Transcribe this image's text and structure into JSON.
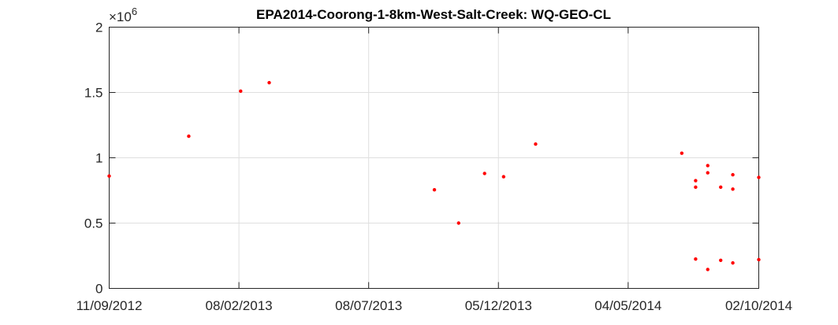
{
  "chart_data": {
    "type": "scatter",
    "title": "EPA2014-Coorong-1-8km-West-Salt-Creek: WQ-GEO-CL",
    "xlabel": "",
    "ylabel": "",
    "xlim": [
      "2012-09-11",
      "2014-10-02"
    ],
    "ylim": [
      0,
      2000000
    ],
    "x_ticks": [
      "2012-09-11",
      "2013-02-08",
      "2013-07-08",
      "2013-12-05",
      "2014-05-04",
      "2014-10-02"
    ],
    "x_tick_labels": [
      "11/09/2012",
      "08/02/2013",
      "08/07/2013",
      "05/12/2013",
      "04/05/2014",
      "02/10/2014"
    ],
    "y_ticks": [
      0,
      500000,
      1000000,
      1500000,
      2000000
    ],
    "y_tick_labels": [
      "0",
      "0.5",
      "1",
      "1.5",
      "2"
    ],
    "y_exponent_label": "×10",
    "y_exponent_power": "6",
    "grid": true,
    "marker_color": "#ff0000",
    "series": [
      {
        "points": [
          {
            "x": "2012-09-11",
            "y": 860000
          },
          {
            "x": "2012-12-12",
            "y": 1165000
          },
          {
            "x": "2013-02-10",
            "y": 1510000
          },
          {
            "x": "2013-03-15",
            "y": 1575000
          },
          {
            "x": "2013-09-22",
            "y": 755000
          },
          {
            "x": "2013-10-20",
            "y": 500000
          },
          {
            "x": "2013-11-19",
            "y": 880000
          },
          {
            "x": "2013-12-11",
            "y": 855000
          },
          {
            "x": "2014-01-17",
            "y": 1105000
          },
          {
            "x": "2014-07-05",
            "y": 1035000
          },
          {
            "x": "2014-07-21",
            "y": 825000
          },
          {
            "x": "2014-07-21",
            "y": 775000
          },
          {
            "x": "2014-07-21",
            "y": 225000
          },
          {
            "x": "2014-08-04",
            "y": 940000
          },
          {
            "x": "2014-08-04",
            "y": 885000
          },
          {
            "x": "2014-08-04",
            "y": 145000
          },
          {
            "x": "2014-08-19",
            "y": 775000
          },
          {
            "x": "2014-08-19",
            "y": 215000
          },
          {
            "x": "2014-09-02",
            "y": 870000
          },
          {
            "x": "2014-09-02",
            "y": 760000
          },
          {
            "x": "2014-09-02",
            "y": 195000
          },
          {
            "x": "2014-10-02",
            "y": 850000
          },
          {
            "x": "2014-10-02",
            "y": 220000
          }
        ]
      }
    ]
  }
}
